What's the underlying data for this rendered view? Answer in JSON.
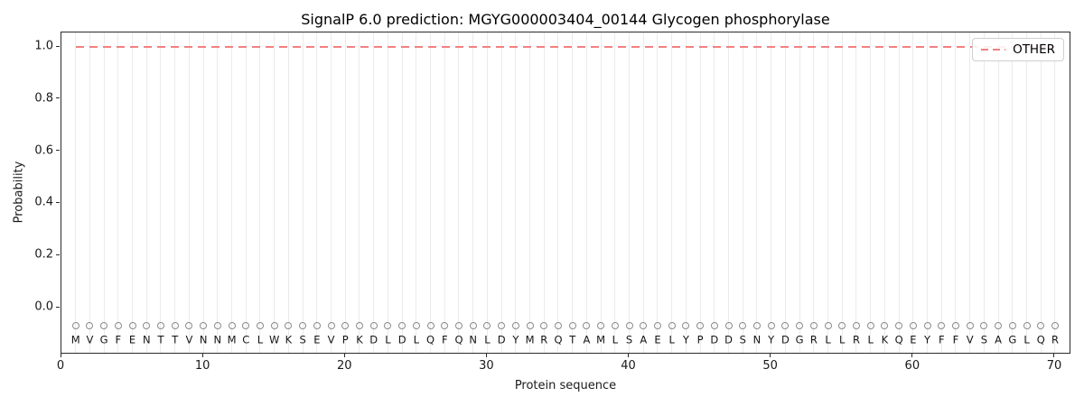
{
  "chart_data": {
    "type": "line",
    "title": "SignalP 6.0 prediction: MGYG000003404_00144 Glycogen phosphorylase",
    "xlabel": "Protein sequence",
    "ylabel": "Probability",
    "xlim": [
      0,
      71.2
    ],
    "ylim": [
      -0.18,
      1.06
    ],
    "xticks": [
      "0",
      "10",
      "20",
      "30",
      "40",
      "50",
      "60",
      "70"
    ],
    "xtick_values": [
      0,
      10,
      20,
      30,
      40,
      50,
      60,
      70
    ],
    "yticks": [
      "0.0",
      "0.2",
      "0.4",
      "0.6",
      "0.8",
      "1.0"
    ],
    "ytick_values": [
      0.0,
      0.2,
      0.4,
      0.6,
      0.8,
      1.0
    ],
    "grid": {
      "vertical_per_residue": true,
      "color": "#ebebeb"
    },
    "legend": {
      "position": "upper right",
      "entries": [
        {
          "label": "OTHER",
          "color": "#f28080",
          "linestyle": "dashed"
        }
      ]
    },
    "series": [
      {
        "name": "OTHER",
        "linestyle": "dashed",
        "color": "#f28080",
        "x_from": 1,
        "x_to": 70,
        "y_constant": 1.0
      }
    ],
    "sequence": "MVGFENTTVNNMCLWKSEVPKDLDLQFQNLDYMRQTAMLSAELYPDDSNYDGRLLRLKQEYFFVSAGLQR",
    "residue_markers": {
      "symbol": "open-circle",
      "y": -0.07,
      "color": "#8a8a8a"
    }
  }
}
